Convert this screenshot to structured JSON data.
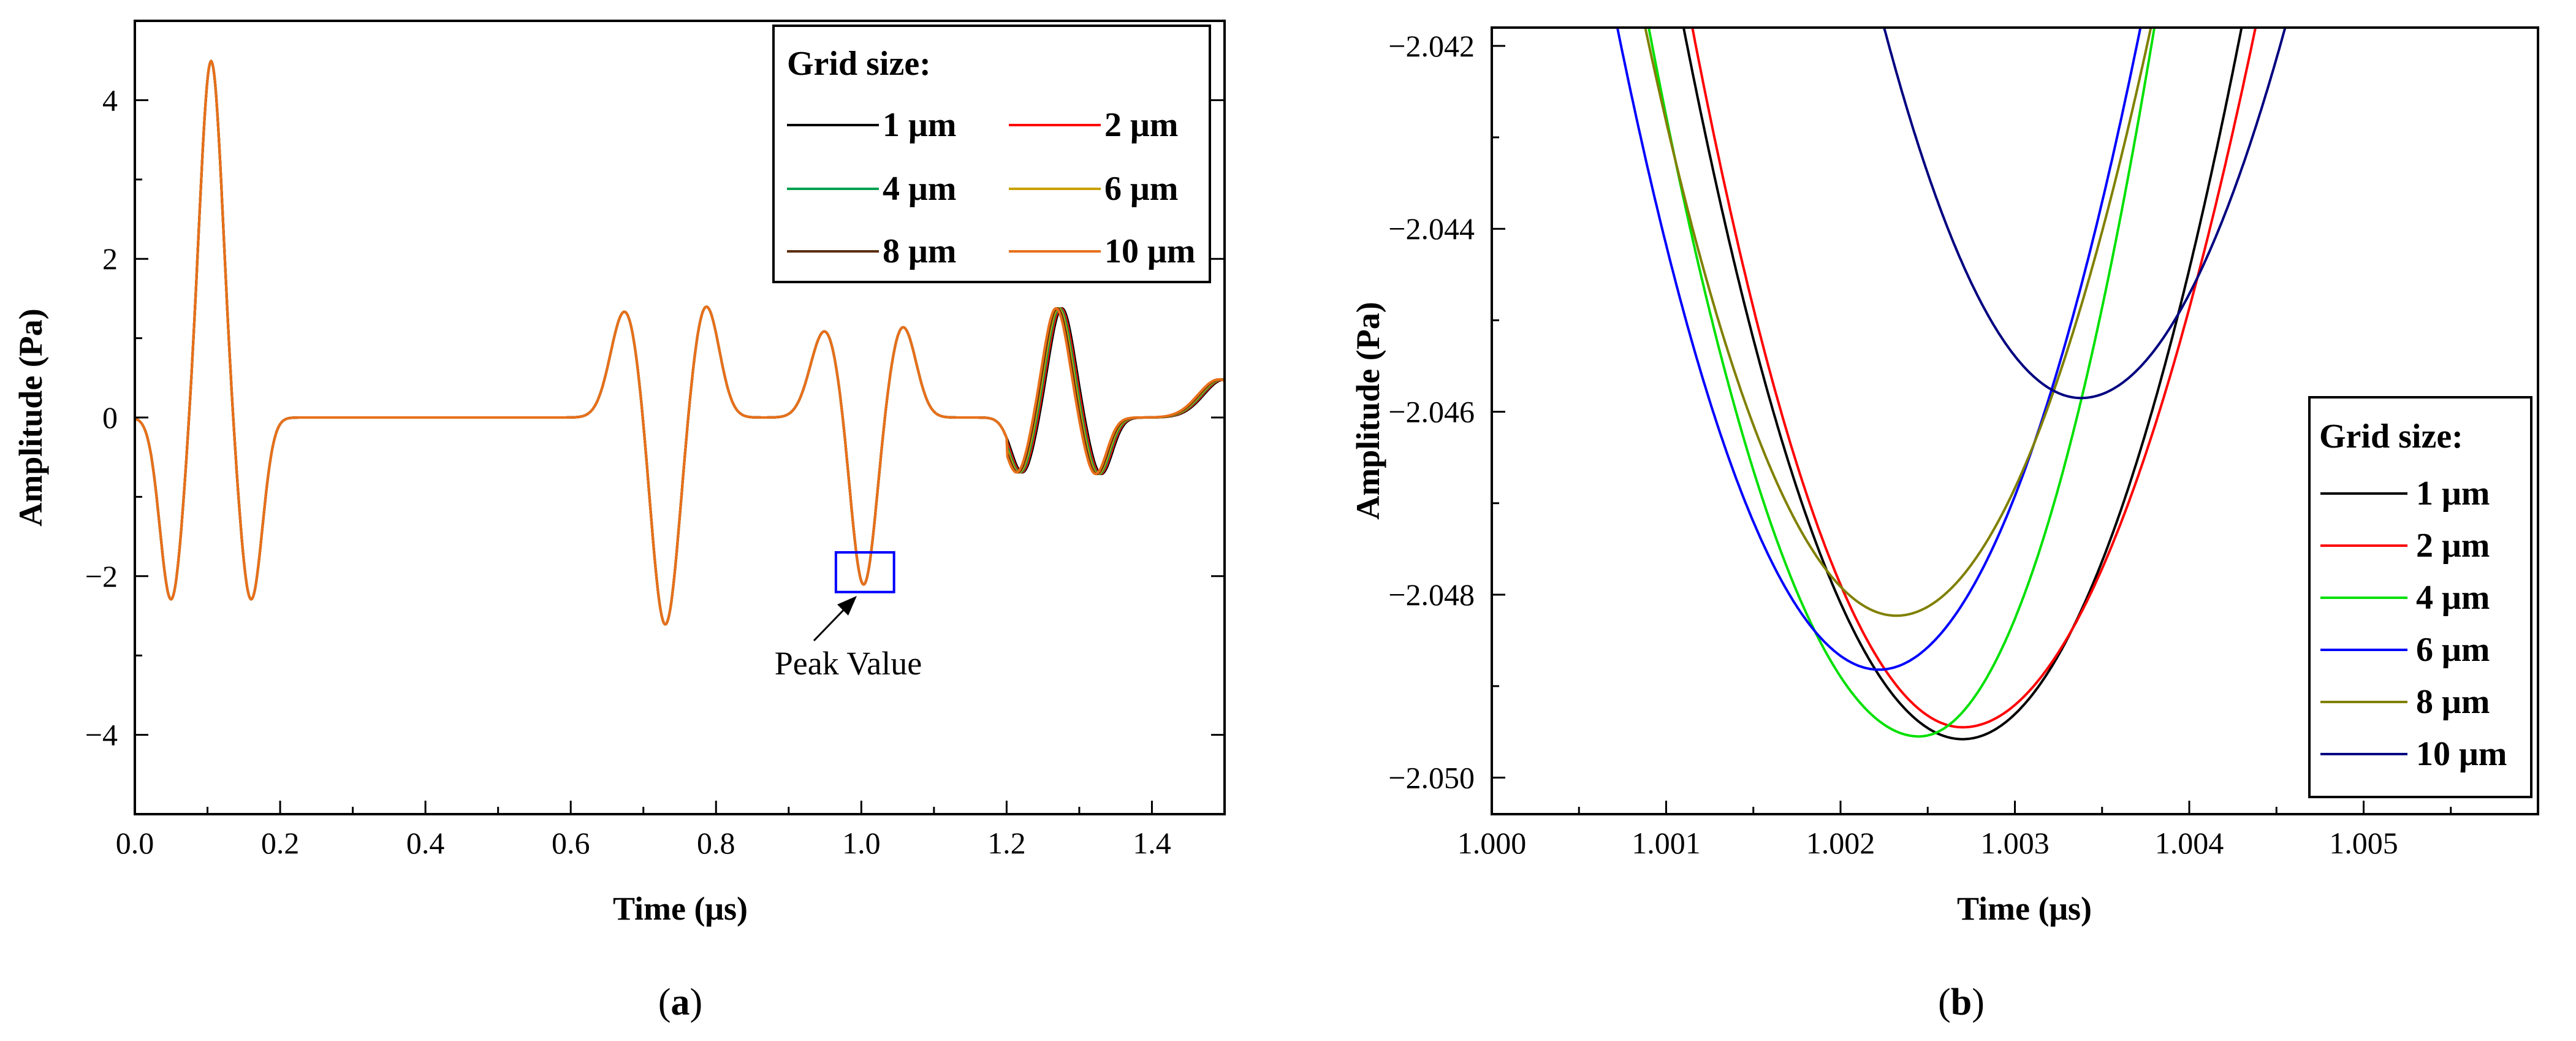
{
  "chart_data": [
    {
      "panel_label_open": "(",
      "panel_label": "a",
      "panel_label_close": ")",
      "type": "line",
      "title": "",
      "xlabel": "Time (μs)",
      "ylabel": "Amplitude (Pa)",
      "xlim": [
        0,
        1.5
      ],
      "ylim": [
        -5,
        5
      ],
      "xticks": [
        0.0,
        0.2,
        0.4,
        0.6,
        0.8,
        1.0,
        1.2,
        1.4
      ],
      "xtick_labels": [
        "0.0",
        "0.2",
        "0.4",
        "0.6",
        "0.8",
        "1.0",
        "1.2",
        "1.4"
      ],
      "yticks": [
        -4,
        -2,
        0,
        2,
        4
      ],
      "ytick_labels": [
        "−4",
        "−2",
        "0",
        "2",
        "4"
      ],
      "grid": false,
      "legend_title": "Grid size:",
      "legend_position": "top-right",
      "series": [
        {
          "name": "1 μm",
          "color": "#000000"
        },
        {
          "name": "2 μm",
          "color": "#ff0000"
        },
        {
          "name": "4 μm",
          "color": "#00a050"
        },
        {
          "name": "6 μm",
          "color": "#c8a000"
        },
        {
          "name": "8 μm",
          "color": "#5a2d0c"
        },
        {
          "name": "10 μm",
          "color": "#e8701a"
        }
      ],
      "waveform": {
        "description_x": [
          0.0,
          0.05,
          0.1,
          0.16,
          0.2,
          0.6,
          0.675,
          0.73,
          0.785,
          0.84,
          0.95,
          1.003,
          1.057,
          1.1,
          1.22,
          1.275,
          1.33,
          1.38,
          1.5
        ],
        "description_y": [
          0.0,
          -2.25,
          4.42,
          -2.25,
          0.0,
          0.0,
          1.28,
          -2.55,
          1.37,
          0.0,
          1.02,
          -2.05,
          1.1,
          0.0,
          -0.65,
          1.34,
          -0.7,
          0.0,
          0.45
        ]
      },
      "annotation": {
        "text": "Peak Value",
        "target_x": 1.0,
        "target_y": -2.0,
        "box_x": [
          0.965,
          1.045
        ],
        "box_y": [
          -2.2,
          -1.7
        ],
        "box_color": "#0000ff"
      }
    },
    {
      "panel_label_open": "(",
      "panel_label": "b",
      "panel_label_close": ")",
      "type": "line",
      "title": "",
      "xlabel": "Time (μs)",
      "ylabel": "Amplitude (Pa)",
      "xlim": [
        1.0,
        1.006
      ],
      "ylim": [
        -2.0504,
        -2.0418
      ],
      "xticks": [
        1.0,
        1.001,
        1.002,
        1.003,
        1.004,
        1.005
      ],
      "xtick_labels": [
        "1.000",
        "1.001",
        "1.002",
        "1.003",
        "1.004",
        "1.005"
      ],
      "yticks": [
        -2.05,
        -2.048,
        -2.046,
        -2.044,
        -2.042
      ],
      "ytick_labels": [
        "−2.050",
        "−2.048",
        "−2.046",
        "−2.044",
        "−2.042"
      ],
      "grid": false,
      "legend_title": "Grid size:",
      "legend_position": "bottom-right",
      "series": [
        {
          "name": "1 μm",
          "color": "#000000",
          "x": [
            1.0011,
            1.0027,
            1.0043
          ],
          "y": [
            -2.0418,
            -2.04958,
            -2.0418
          ]
        },
        {
          "name": "2 μm",
          "color": "#ff0000",
          "x": [
            1.00115,
            1.0027,
            1.00438
          ],
          "y": [
            -2.0418,
            -2.04945,
            -2.0418
          ]
        },
        {
          "name": "4 μm",
          "color": "#00e000",
          "x": [
            1.0009,
            1.00245,
            1.0038
          ],
          "y": [
            -2.0418,
            -2.04955,
            -2.0418
          ]
        },
        {
          "name": "6 μm",
          "color": "#0000ff",
          "x": [
            1.00072,
            1.00222,
            1.00372
          ],
          "y": [
            -2.0418,
            -2.04882,
            -2.0418
          ]
        },
        {
          "name": "8 μm",
          "color": "#808000",
          "x": [
            1.00088,
            1.00232,
            1.00378
          ],
          "y": [
            -2.0418,
            -2.04823,
            -2.0418
          ]
        },
        {
          "name": "10 μm",
          "color": "#000080",
          "x": [
            1.00225,
            1.00338,
            1.00455
          ],
          "y": [
            -2.0418,
            -2.04585,
            -2.0418
          ]
        }
      ]
    }
  ]
}
